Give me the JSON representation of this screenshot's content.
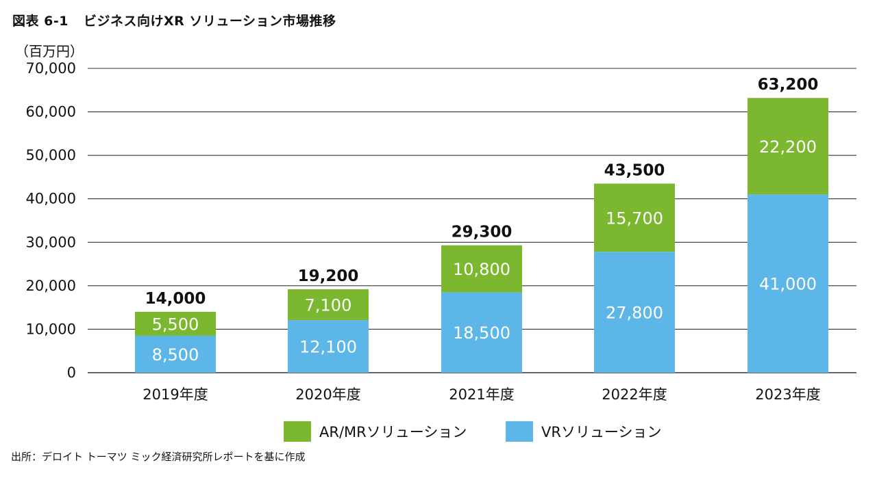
{
  "figure": {
    "number": "図表 6-1",
    "title": "ビジネス向けXR ソリューション市場推移"
  },
  "source": "出所：デロイト トーマツ ミック経済研究所レポートを基に作成",
  "colors": {
    "ar_mr": "#7bb82f",
    "vr": "#5cb6e8",
    "gridline": "#333333",
    "text": "#111111"
  },
  "chart_data": {
    "type": "bar",
    "stacked": true,
    "title": "ビジネス向けXR ソリューション市場推移",
    "ylabel": "（百万円）",
    "xlabel": "",
    "ylim": [
      0,
      70000
    ],
    "yticks": [
      0,
      10000,
      20000,
      30000,
      40000,
      50000,
      60000,
      70000
    ],
    "ytick_labels": [
      "0",
      "10,000",
      "20,000",
      "30,000",
      "40,000",
      "50,000",
      "60,000",
      "70,000"
    ],
    "categories": [
      "2019年度",
      "2020年度",
      "2021年度",
      "2022年度",
      "2023年度"
    ],
    "series": [
      {
        "name": "VRソリューション",
        "color_key": "vr",
        "values": [
          8500,
          12100,
          18500,
          27800,
          41000
        ],
        "labels": [
          "8,500",
          "12,100",
          "18,500",
          "27,800",
          "41,000"
        ]
      },
      {
        "name": "AR/MRソリューション",
        "color_key": "ar_mr",
        "values": [
          5500,
          7100,
          10800,
          15700,
          22200
        ],
        "labels": [
          "5,500",
          "7,100",
          "10,800",
          "15,700",
          "22,200"
        ]
      }
    ],
    "totals": [
      14000,
      19200,
      29300,
      43500,
      63200
    ],
    "total_labels": [
      "14,000",
      "19,200",
      "29,300",
      "43,500",
      "63,200"
    ],
    "legend": [
      "AR/MRソリューション",
      "VRソリューション"
    ],
    "legend_position": "bottom-center",
    "grid": true
  }
}
